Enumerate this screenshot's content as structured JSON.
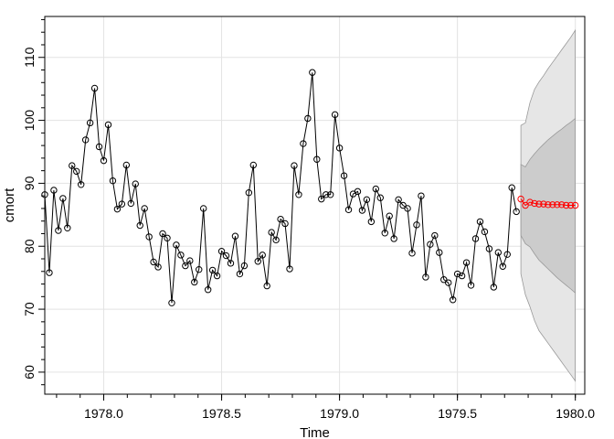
{
  "chart_data": {
    "type": "line",
    "xlabel": "Time",
    "ylabel": "cmort",
    "xlim": [
      1977.75,
      1980.04
    ],
    "ylim": [
      56.5,
      116.5
    ],
    "x_ticks": [
      1978.0,
      1978.5,
      1979.0,
      1979.5,
      1980.0
    ],
    "x_tick_labels": [
      "1978.0",
      "1978.5",
      "1979.0",
      "1979.5",
      "1980.0"
    ],
    "y_ticks": [
      60,
      70,
      80,
      90,
      100,
      110
    ],
    "y_tick_labels": [
      "60",
      "70",
      "80",
      "90",
      "100",
      "110"
    ],
    "grid": true,
    "colors": {
      "observed": "#000000",
      "forecast": "#ff0000",
      "band_outer": "#e6e6e6",
      "band_inner": "#cccccc",
      "band_edge": "#999999",
      "grid": "#e3e3e3"
    },
    "series": [
      {
        "role": "observed",
        "x_start": 1977.75,
        "x_step": 0.019231,
        "values": [
          88.2,
          75.8,
          88.9,
          82.5,
          87.6,
          82.9,
          92.8,
          91.9,
          89.8,
          96.9,
          99.6,
          105.1,
          95.8,
          93.6,
          99.3,
          90.4,
          85.9,
          86.7,
          92.9,
          86.8,
          89.9,
          83.3,
          86.0,
          81.5,
          77.5,
          76.7,
          82.0,
          81.3,
          71.0,
          80.2,
          78.6,
          76.9,
          77.7,
          74.3,
          76.3,
          86.0,
          73.1,
          76.2,
          75.3,
          79.2,
          78.5,
          77.3,
          81.6,
          75.6,
          76.9,
          88.5,
          92.9,
          77.6,
          78.6,
          73.7,
          82.2,
          81.0,
          84.3,
          83.6,
          76.4,
          92.8,
          88.2,
          96.3,
          100.3,
          107.6,
          93.8,
          87.5,
          88.2,
          88.2,
          100.9,
          95.6,
          91.2,
          85.8,
          88.3,
          88.7,
          85.7,
          87.4,
          83.9,
          89.1,
          87.7,
          82.1,
          84.8,
          81.2,
          87.4,
          86.5,
          86.0,
          78.9,
          83.4,
          88.0,
          75.1,
          80.3,
          81.7,
          79.0,
          74.7,
          74.2,
          71.5,
          75.6,
          75.3,
          77.4,
          73.8,
          81.2,
          83.9,
          82.3,
          79.6,
          73.5,
          79.0,
          76.8,
          78.7,
          89.3,
          85.5
        ]
      },
      {
        "role": "forecast",
        "x_start": 1979.769,
        "x_step": 0.019231,
        "values": [
          87.5,
          86.5,
          87.0,
          86.8,
          86.7,
          86.7,
          86.6,
          86.6,
          86.6,
          86.6,
          86.5,
          86.5,
          86.5
        ],
        "band_inner_upper": [
          93.0,
          92.6,
          93.8,
          94.7,
          95.5,
          96.2,
          96.9,
          97.5,
          98.1,
          98.6,
          99.2,
          99.7,
          100.3
        ],
        "band_inner_lower": [
          81.7,
          80.4,
          79.9,
          78.8,
          77.8,
          77.1,
          76.4,
          75.7,
          75.0,
          74.4,
          73.8,
          73.2,
          72.6
        ],
        "band_outer_upper": [
          99.2,
          99.6,
          102.8,
          104.9,
          106.1,
          107.1,
          108.2,
          109.2,
          110.2,
          111.2,
          112.2,
          113.2,
          114.3
        ],
        "band_outer_lower": [
          75.6,
          72.3,
          70.4,
          68.2,
          66.6,
          65.6,
          64.6,
          63.6,
          62.6,
          61.6,
          60.6,
          59.6,
          58.6
        ]
      }
    ]
  }
}
